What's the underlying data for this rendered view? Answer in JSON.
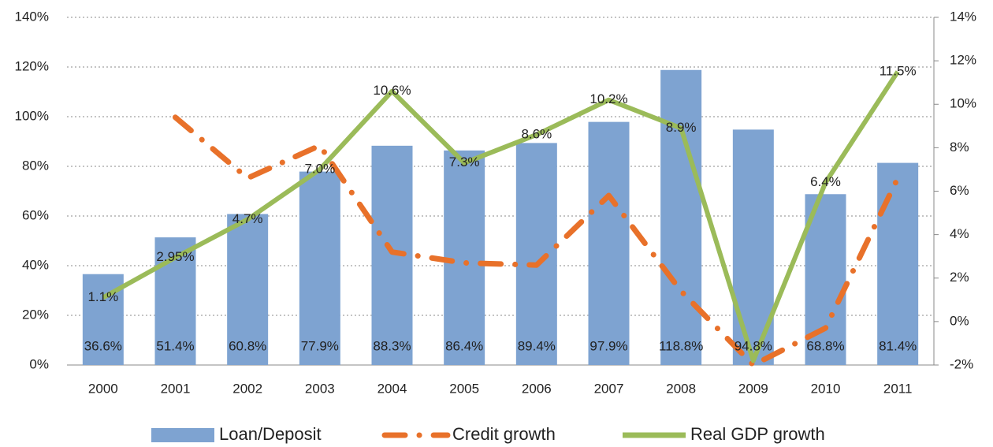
{
  "chart_data": {
    "type": "bar-line",
    "categories": [
      "2000",
      "2001",
      "2002",
      "2003",
      "2004",
      "2005",
      "2006",
      "2007",
      "2008",
      "2009",
      "2010",
      "2011"
    ],
    "series": [
      {
        "name": "Loan/Deposit",
        "type": "bar",
        "color": "#7ea3d1",
        "values": [
          36.6,
          51.4,
          60.8,
          77.9,
          88.3,
          86.4,
          89.4,
          97.9,
          118.8,
          94.8,
          68.8,
          81.4
        ],
        "value_labels": [
          "36.6%",
          "51.4%",
          "60.8%",
          "77.9%",
          "88.3%",
          "86.4%",
          "89.4%",
          "97.9%",
          "118.8%",
          "94.8%",
          "68.8%",
          "81.4%"
        ]
      },
      {
        "name": "Credit growth",
        "type": "dashdot",
        "color": "#e8712a",
        "axis": "y2",
        "values": [
          null,
          9.4,
          6.6,
          8.1,
          3.2,
          2.7,
          2.6,
          5.8,
          1.4,
          -2.0,
          -0.3,
          6.6
        ]
      },
      {
        "name": "Real GDP growth",
        "type": "line",
        "color": "#9bbb59",
        "axis": "y2",
        "values": [
          1.1,
          2.95,
          4.7,
          7.0,
          10.6,
          7.3,
          8.6,
          10.2,
          8.9,
          -1.8,
          6.4,
          11.5
        ],
        "value_labels": [
          "1.1%",
          "2.95%",
          "4.7%",
          "7.0%",
          "10.6%",
          "7.3%",
          "8.6%",
          "10.2%",
          "8.9%",
          null,
          "6.4%",
          "11.5%"
        ]
      }
    ],
    "ylim": [
      0,
      140
    ],
    "yticks": [
      {
        "value": 0,
        "label": "0%"
      },
      {
        "value": 20,
        "label": "20%"
      },
      {
        "value": 40,
        "label": "40%"
      },
      {
        "value": 60,
        "label": "60%"
      },
      {
        "value": 80,
        "label": "80%"
      },
      {
        "value": 100,
        "label": "100%"
      },
      {
        "value": 120,
        "label": "120%"
      },
      {
        "value": 140,
        "label": "140%"
      }
    ],
    "y2lim": [
      -2,
      14
    ],
    "y2ticks": [
      {
        "value": -2,
        "label": "-2%"
      },
      {
        "value": 0,
        "label": "0%"
      },
      {
        "value": 2,
        "label": "2%"
      },
      {
        "value": 4,
        "label": "4%"
      },
      {
        "value": 6,
        "label": "6%"
      },
      {
        "value": 8,
        "label": "8%"
      },
      {
        "value": 10,
        "label": "10%"
      },
      {
        "value": 12,
        "label": "12%"
      },
      {
        "value": 14,
        "label": "14%"
      }
    ],
    "grid": true,
    "legend": "bottom"
  }
}
